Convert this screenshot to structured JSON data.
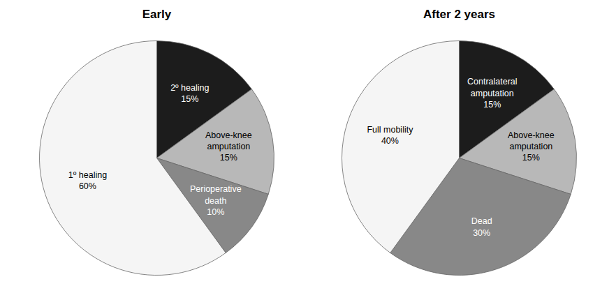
{
  "chart_data": [
    {
      "type": "pie",
      "title": "Early",
      "categories": [
        "2º healing",
        "Above-knee\namputation",
        "Perioperative\ndeath",
        "1º healing"
      ],
      "values": [
        15,
        15,
        10,
        60
      ],
      "value_labels": [
        "15%",
        "15%",
        "10%",
        "60%"
      ],
      "colors": [
        "#1c1c1c",
        "#b8b8b8",
        "#888888",
        "#f5f5f5"
      ]
    },
    {
      "type": "pie",
      "title": "After 2 years",
      "categories": [
        "Contralateral\namputation",
        "Above-knee\namputation",
        "Dead",
        "Full mobility"
      ],
      "values": [
        15,
        15,
        30,
        40
      ],
      "value_labels": [
        "15%",
        "15%",
        "30%",
        "40%"
      ],
      "colors": [
        "#1c1c1c",
        "#b8b8b8",
        "#888888",
        "#f5f5f5"
      ]
    }
  ]
}
